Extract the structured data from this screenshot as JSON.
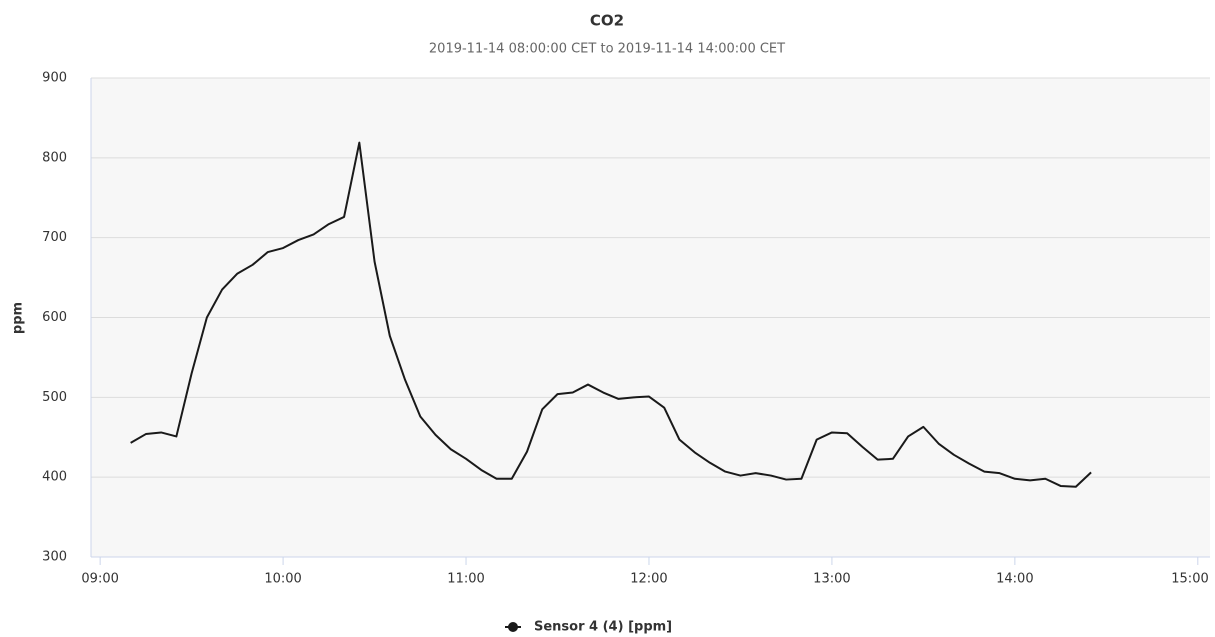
{
  "chart_data": {
    "type": "line",
    "title": "CO2",
    "subtitle": "2019-11-14 08:00:00 CET to 2019-11-14 14:00:00 CET",
    "y_label": "ppm",
    "x": [
      "09:10",
      "09:15",
      "09:20",
      "09:25",
      "09:30",
      "09:35",
      "09:40",
      "09:45",
      "09:50",
      "09:55",
      "10:00",
      "10:05",
      "10:10",
      "10:15",
      "10:20",
      "10:25",
      "10:30",
      "10:35",
      "10:40",
      "10:45",
      "10:50",
      "10:55",
      "11:00",
      "11:05",
      "11:10",
      "11:15",
      "11:20",
      "11:25",
      "11:30",
      "11:35",
      "11:40",
      "11:45",
      "11:50",
      "11:55",
      "12:00",
      "12:05",
      "12:10",
      "12:15",
      "12:20",
      "12:25",
      "12:30",
      "12:35",
      "12:40",
      "12:45",
      "12:50",
      "12:55",
      "13:00",
      "13:05",
      "13:10",
      "13:15",
      "13:20",
      "13:25",
      "13:30",
      "13:35",
      "13:40",
      "13:45",
      "13:50",
      "13:55",
      "14:00",
      "14:05",
      "14:10",
      "14:15",
      "14:20",
      "14:25"
    ],
    "series": [
      {
        "name": "Sensor 4 (4) [ppm]",
        "color": "#1a1a1a",
        "values": [
          443,
          454,
          456,
          451,
          530,
          600,
          635,
          655,
          666,
          682,
          687,
          697,
          704,
          717,
          726,
          819,
          670,
          577,
          522,
          476,
          453,
          435,
          423,
          409,
          398,
          398,
          432,
          485,
          504,
          506,
          516,
          506,
          498,
          500,
          501,
          487,
          447,
          431,
          418,
          407,
          402,
          405,
          402,
          397,
          398,
          447,
          456,
          455,
          438,
          422,
          423,
          451,
          463,
          442,
          428,
          417,
          407,
          405,
          398,
          396,
          398,
          389,
          388,
          406
        ]
      }
    ],
    "xlim": [
      "08:57",
      "15:04"
    ],
    "xticks": [
      "09:00",
      "10:00",
      "11:00",
      "12:00",
      "13:00",
      "14:00",
      "15:00"
    ],
    "ylim": [
      300,
      900
    ],
    "yticks": [
      300,
      400,
      500,
      600,
      700,
      800,
      900
    ],
    "grid": true,
    "legend": "bottom"
  }
}
